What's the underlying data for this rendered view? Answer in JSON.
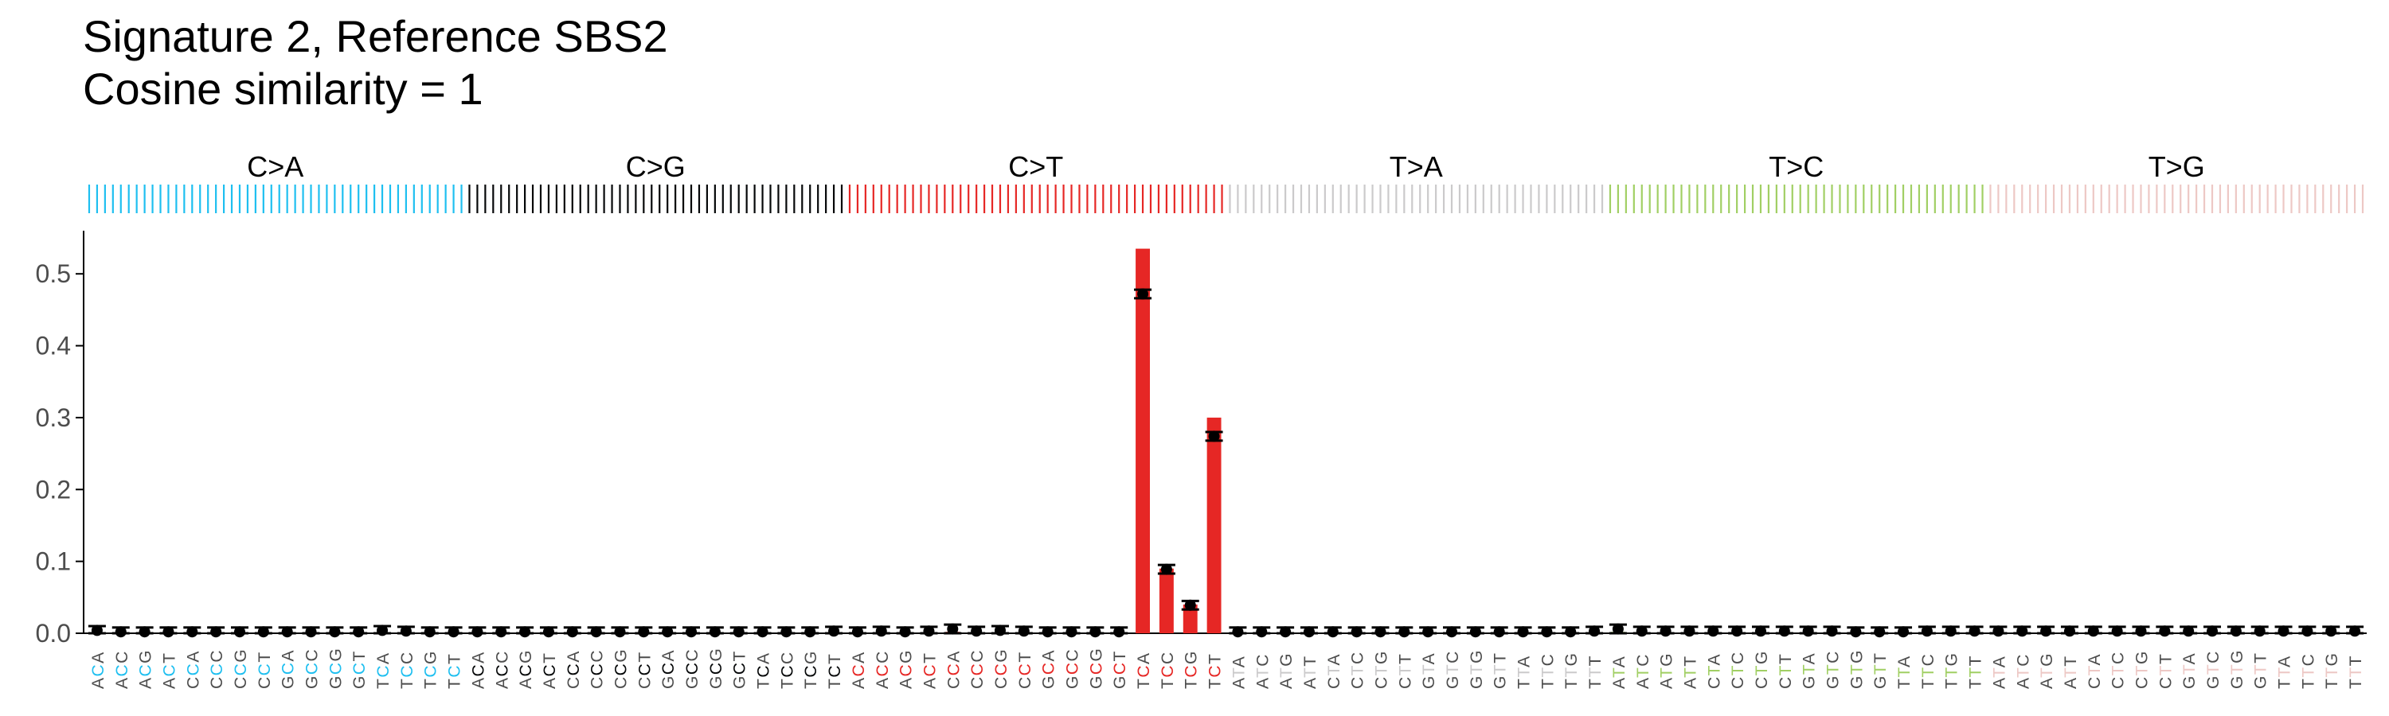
{
  "title_line1": "Signature 2, Reference SBS2",
  "title_line2": "Cosine similarity = 1",
  "chart_data": {
    "type": "bar",
    "ylim": [
      0,
      0.56
    ],
    "yticks": [
      "0.0",
      "0.1",
      "0.2",
      "0.3",
      "0.4",
      "0.5"
    ],
    "grid": false,
    "mutation_groups": [
      {
        "name": "C>A",
        "color": "#1ebff0"
      },
      {
        "name": "C>G",
        "color": "#050708"
      },
      {
        "name": "C>T",
        "color": "#e62725"
      },
      {
        "name": "T>A",
        "color": "#cbcacb"
      },
      {
        "name": "T>C",
        "color": "#a1cf64"
      },
      {
        "name": "T>G",
        "color": "#edc8c5"
      }
    ],
    "contexts_C": [
      "ACA",
      "ACC",
      "ACG",
      "ACT",
      "CCA",
      "CCC",
      "CCG",
      "CCT",
      "GCA",
      "GCC",
      "GCG",
      "GCT",
      "TCA",
      "TCC",
      "TCG",
      "TCT"
    ],
    "contexts_T": [
      "ATA",
      "ATC",
      "ATG",
      "ATT",
      "CTA",
      "CTC",
      "CTG",
      "CTT",
      "GTA",
      "GTC",
      "GTG",
      "GTT",
      "TTA",
      "TTC",
      "TTG",
      "TTT"
    ],
    "bar_values": [
      0.001,
      0.0005,
      0.0005,
      0.0005,
      0.0005,
      0.0005,
      0.0005,
      0.0005,
      0.0005,
      0.0005,
      0.0005,
      0.0005,
      0.001,
      0.0005,
      0.0005,
      0.0005,
      0.0005,
      0.0005,
      0.0005,
      0.0005,
      0.0005,
      0.0005,
      0.0005,
      0.0005,
      0.0005,
      0.0005,
      0.0005,
      0.0005,
      0.0005,
      0.0005,
      0.0005,
      0.001,
      0.0005,
      0.0005,
      0.0005,
      0.001,
      0.002,
      0.001,
      0.001,
      0.001,
      0.0005,
      0.0005,
      0.0005,
      0.0005,
      0.535,
      0.09,
      0.04,
      0.3,
      0.0005,
      0.0005,
      0.0005,
      0.0005,
      0.0005,
      0.0005,
      0.0005,
      0.0005,
      0.0005,
      0.0005,
      0.0005,
      0.0005,
      0.0005,
      0.0005,
      0.0005,
      0.001,
      0.002,
      0.001,
      0.001,
      0.001,
      0.001,
      0.001,
      0.001,
      0.001,
      0.001,
      0.001,
      0.0005,
      0.0005,
      0.0005,
      0.001,
      0.001,
      0.001,
      0.001,
      0.001,
      0.001,
      0.001,
      0.001,
      0.001,
      0.001,
      0.001,
      0.001,
      0.001,
      0.001,
      0.001,
      0.001,
      0.001,
      0.001,
      0.002
    ],
    "point_values": [
      0.004,
      0.002,
      0.002,
      0.002,
      0.002,
      0.002,
      0.002,
      0.002,
      0.002,
      0.002,
      0.002,
      0.002,
      0.004,
      0.003,
      0.002,
      0.002,
      0.002,
      0.002,
      0.002,
      0.002,
      0.002,
      0.002,
      0.002,
      0.002,
      0.002,
      0.002,
      0.002,
      0.002,
      0.002,
      0.002,
      0.002,
      0.003,
      0.002,
      0.003,
      0.002,
      0.003,
      0.006,
      0.003,
      0.004,
      0.003,
      0.002,
      0.002,
      0.002,
      0.002,
      0.472,
      0.089,
      0.039,
      0.274,
      0.002,
      0.002,
      0.002,
      0.002,
      0.002,
      0.002,
      0.002,
      0.002,
      0.002,
      0.002,
      0.002,
      0.002,
      0.002,
      0.002,
      0.002,
      0.003,
      0.006,
      0.003,
      0.003,
      0.003,
      0.003,
      0.003,
      0.003,
      0.003,
      0.003,
      0.003,
      0.002,
      0.002,
      0.002,
      0.003,
      0.003,
      0.003,
      0.003,
      0.003,
      0.003,
      0.003,
      0.003,
      0.003,
      0.003,
      0.003,
      0.003,
      0.003,
      0.003,
      0.003,
      0.003,
      0.003,
      0.003,
      0.003
    ],
    "error_bar_halfwidth": 0.006
  }
}
